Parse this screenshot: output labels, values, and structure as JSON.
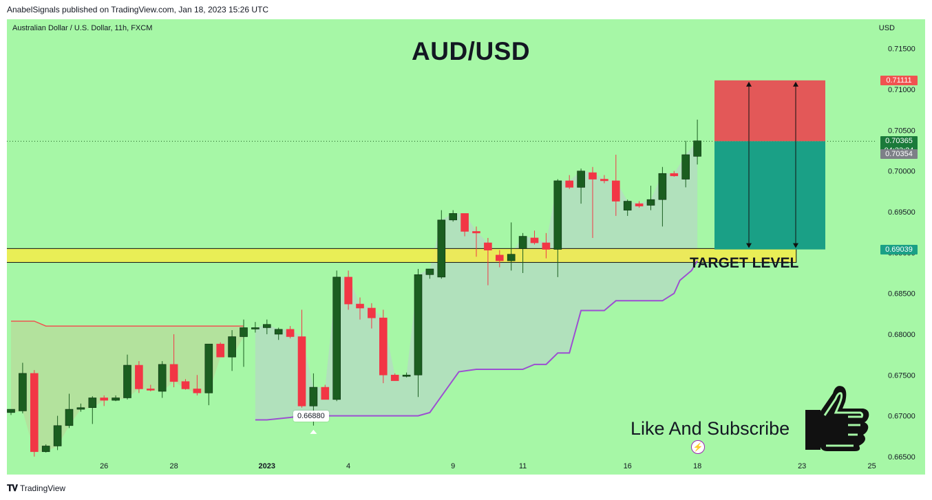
{
  "header": {
    "publisher_line": "AnabelSignals published on TradingView.com, Jan 18, 2023 15:26 UTC"
  },
  "chart_info": {
    "symbol_line": "Australian Dollar / U.S. Dollar, 11h, FXCM",
    "currency": "USD"
  },
  "annotations": {
    "title": "AUD/USD",
    "target_label": "TARGET LEVEL",
    "cta": "Like And Subscribe",
    "low_label": "0.66880",
    "thumbs_icon": "thumbs-up-icon",
    "lightning_icon": "lightning-icon"
  },
  "price_tags": {
    "stop": "0.71111",
    "last": "0.70365",
    "countdown": "04:33:24",
    "prev": "0.70354",
    "target": "0.69039"
  },
  "colors": {
    "background": "#a6f7a6",
    "up_candle": "#1b5e20",
    "down_candle": "#f23645",
    "target_zone": "#ffeb3b",
    "stop_zone": "#e35858",
    "profit_zone": "#1aa086",
    "trail_line": "#9c4fd1",
    "upper_line": "#f05350"
  },
  "footer": {
    "brand": "TradingView",
    "logo_icon": "tradingview-logo-icon"
  },
  "chart_data": {
    "type": "candlestick",
    "title": "AUD/USD",
    "interval": "11h",
    "ylim": [
      0.6628,
      0.7186
    ],
    "y_ticks": [
      "0.71500",
      "0.71000",
      "0.70500",
      "0.70000",
      "0.69500",
      "0.69000",
      "0.68500",
      "0.68000",
      "0.67500",
      "0.67000",
      "0.66500"
    ],
    "x_ticks": [
      {
        "label": "26",
        "index": 8
      },
      {
        "label": "28",
        "index": 14
      },
      {
        "label": "2023",
        "index": 22
      },
      {
        "label": "4",
        "index": 29
      },
      {
        "label": "9",
        "index": 38
      },
      {
        "label": "11",
        "index": 44
      },
      {
        "label": "16",
        "index": 53
      },
      {
        "label": "18",
        "index": 59
      },
      {
        "label": "23",
        "index": 68
      },
      {
        "label": "25",
        "index": 74
      }
    ],
    "candles": [
      {
        "o": 0.6704,
        "h": 0.6708,
        "l": 0.6701,
        "c": 0.6708
      },
      {
        "o": 0.6706,
        "h": 0.6765,
        "l": 0.6703,
        "c": 0.6752
      },
      {
        "o": 0.6752,
        "h": 0.6756,
        "l": 0.665,
        "c": 0.6656
      },
      {
        "o": 0.6656,
        "h": 0.6665,
        "l": 0.6655,
        "c": 0.6663
      },
      {
        "o": 0.6663,
        "h": 0.67,
        "l": 0.6658,
        "c": 0.6688
      },
      {
        "o": 0.6688,
        "h": 0.6727,
        "l": 0.6685,
        "c": 0.6708
      },
      {
        "o": 0.6708,
        "h": 0.6715,
        "l": 0.6705,
        "c": 0.671
      },
      {
        "o": 0.671,
        "h": 0.6724,
        "l": 0.669,
        "c": 0.6722
      },
      {
        "o": 0.6722,
        "h": 0.6725,
        "l": 0.6712,
        "c": 0.6719
      },
      {
        "o": 0.6719,
        "h": 0.6725,
        "l": 0.6718,
        "c": 0.6722
      },
      {
        "o": 0.6722,
        "h": 0.6775,
        "l": 0.672,
        "c": 0.6762
      },
      {
        "o": 0.6762,
        "h": 0.6767,
        "l": 0.6728,
        "c": 0.6733
      },
      {
        "o": 0.6733,
        "h": 0.6738,
        "l": 0.673,
        "c": 0.6732
      },
      {
        "o": 0.673,
        "h": 0.6767,
        "l": 0.6722,
        "c": 0.6763
      },
      {
        "o": 0.6763,
        "h": 0.68,
        "l": 0.6735,
        "c": 0.6742
      },
      {
        "o": 0.6742,
        "h": 0.6745,
        "l": 0.6732,
        "c": 0.6733
      },
      {
        "o": 0.6733,
        "h": 0.675,
        "l": 0.6725,
        "c": 0.6728
      },
      {
        "o": 0.6728,
        "h": 0.6785,
        "l": 0.6713,
        "c": 0.6788
      },
      {
        "o": 0.6788,
        "h": 0.679,
        "l": 0.6772,
        "c": 0.6772
      },
      {
        "o": 0.6772,
        "h": 0.6805,
        "l": 0.6755,
        "c": 0.6797
      },
      {
        "o": 0.6797,
        "h": 0.6818,
        "l": 0.676,
        "c": 0.6808
      },
      {
        "o": 0.6808,
        "h": 0.6815,
        "l": 0.6802,
        "c": 0.6808
      },
      {
        "o": 0.6808,
        "h": 0.6818,
        "l": 0.68,
        "c": 0.6812
      },
      {
        "o": 0.68,
        "h": 0.6808,
        "l": 0.6793,
        "c": 0.6806
      },
      {
        "o": 0.6806,
        "h": 0.681,
        "l": 0.6795,
        "c": 0.6797
      },
      {
        "o": 0.6797,
        "h": 0.683,
        "l": 0.671,
        "c": 0.6712
      },
      {
        "o": 0.6712,
        "h": 0.6752,
        "l": 0.6688,
        "c": 0.6735
      },
      {
        "o": 0.6735,
        "h": 0.6738,
        "l": 0.672,
        "c": 0.672
      },
      {
        "o": 0.672,
        "h": 0.6878,
        "l": 0.6718,
        "c": 0.687
      },
      {
        "o": 0.687,
        "h": 0.6878,
        "l": 0.683,
        "c": 0.6837
      },
      {
        "o": 0.6837,
        "h": 0.6845,
        "l": 0.6818,
        "c": 0.6832
      },
      {
        "o": 0.6832,
        "h": 0.6838,
        "l": 0.6807,
        "c": 0.682
      },
      {
        "o": 0.682,
        "h": 0.683,
        "l": 0.674,
        "c": 0.675
      },
      {
        "o": 0.675,
        "h": 0.6752,
        "l": 0.6743,
        "c": 0.6743
      },
      {
        "o": 0.675,
        "h": 0.6753,
        "l": 0.6747,
        "c": 0.675
      },
      {
        "o": 0.675,
        "h": 0.688,
        "l": 0.6723,
        "c": 0.6873
      },
      {
        "o": 0.6873,
        "h": 0.688,
        "l": 0.6868,
        "c": 0.688
      },
      {
        "o": 0.687,
        "h": 0.6952,
        "l": 0.6868,
        "c": 0.694
      },
      {
        "o": 0.694,
        "h": 0.6952,
        "l": 0.6938,
        "c": 0.6948
      },
      {
        "o": 0.6948,
        "h": 0.6948,
        "l": 0.692,
        "c": 0.6926
      },
      {
        "o": 0.6926,
        "h": 0.6932,
        "l": 0.6895,
        "c": 0.6924
      },
      {
        "o": 0.6912,
        "h": 0.6918,
        "l": 0.686,
        "c": 0.6903
      },
      {
        "o": 0.6897,
        "h": 0.6903,
        "l": 0.6882,
        "c": 0.689
      },
      {
        "o": 0.689,
        "h": 0.6937,
        "l": 0.6878,
        "c": 0.6898
      },
      {
        "o": 0.6905,
        "h": 0.6924,
        "l": 0.6875,
        "c": 0.692
      },
      {
        "o": 0.6918,
        "h": 0.6927,
        "l": 0.691,
        "c": 0.6912
      },
      {
        "o": 0.6912,
        "h": 0.6924,
        "l": 0.6893,
        "c": 0.6904
      },
      {
        "o": 0.6904,
        "h": 0.699,
        "l": 0.687,
        "c": 0.6988
      },
      {
        "o": 0.6988,
        "h": 0.6995,
        "l": 0.6978,
        "c": 0.698
      },
      {
        "o": 0.698,
        "h": 0.7003,
        "l": 0.696,
        "c": 0.7
      },
      {
        "o": 0.6998,
        "h": 0.7005,
        "l": 0.6918,
        "c": 0.699
      },
      {
        "o": 0.699,
        "h": 0.6995,
        "l": 0.6985,
        "c": 0.6988
      },
      {
        "o": 0.6988,
        "h": 0.702,
        "l": 0.6945,
        "c": 0.6963
      },
      {
        "o": 0.6952,
        "h": 0.6965,
        "l": 0.6945,
        "c": 0.6963
      },
      {
        "o": 0.696,
        "h": 0.6963,
        "l": 0.6955,
        "c": 0.6957
      },
      {
        "o": 0.6958,
        "h": 0.6982,
        "l": 0.6952,
        "c": 0.6965
      },
      {
        "o": 0.6965,
        "h": 0.7005,
        "l": 0.6932,
        "c": 0.6997
      },
      {
        "o": 0.6997,
        "h": 0.7,
        "l": 0.6993,
        "c": 0.6994
      },
      {
        "o": 0.699,
        "h": 0.7037,
        "l": 0.698,
        "c": 0.702
      },
      {
        "o": 0.7018,
        "h": 0.7063,
        "l": 0.7008,
        "c": 0.7037
      }
    ],
    "upper_line": [
      {
        "i": 0,
        "y": 0.6816
      },
      {
        "i": 2,
        "y": 0.6816
      },
      {
        "i": 3,
        "y": 0.681
      },
      {
        "i": 20,
        "y": 0.681
      }
    ],
    "trail_line": [
      {
        "i": 21,
        "y": 0.6695
      },
      {
        "i": 22,
        "y": 0.6695
      },
      {
        "i": 24,
        "y": 0.6698
      },
      {
        "i": 25,
        "y": 0.67
      },
      {
        "i": 35,
        "y": 0.67
      },
      {
        "i": 36,
        "y": 0.6704
      },
      {
        "i": 38.5,
        "y": 0.6754
      },
      {
        "i": 40,
        "y": 0.6757
      },
      {
        "i": 44,
        "y": 0.6757
      },
      {
        "i": 45,
        "y": 0.6763
      },
      {
        "i": 46,
        "y": 0.6763
      },
      {
        "i": 47,
        "y": 0.6777
      },
      {
        "i": 48,
        "y": 0.6777
      },
      {
        "i": 49,
        "y": 0.6829
      },
      {
        "i": 51,
        "y": 0.6829
      },
      {
        "i": 52,
        "y": 0.6841
      },
      {
        "i": 56,
        "y": 0.6841
      },
      {
        "i": 57,
        "y": 0.685
      },
      {
        "i": 57.5,
        "y": 0.6866
      },
      {
        "i": 58.5,
        "y": 0.6878
      },
      {
        "i": 59,
        "y": 0.689
      }
    ],
    "target_zone": {
      "y_top": 0.6905,
      "y_bottom": 0.6888,
      "i_start": -4.5,
      "i_end": 67.5
    },
    "position": {
      "entry": 0.70365,
      "stop": 0.71111,
      "target": 0.69039,
      "i_start": 60,
      "i_end": 70
    },
    "low_marker": {
      "i": 26,
      "value": 0.6688
    }
  }
}
